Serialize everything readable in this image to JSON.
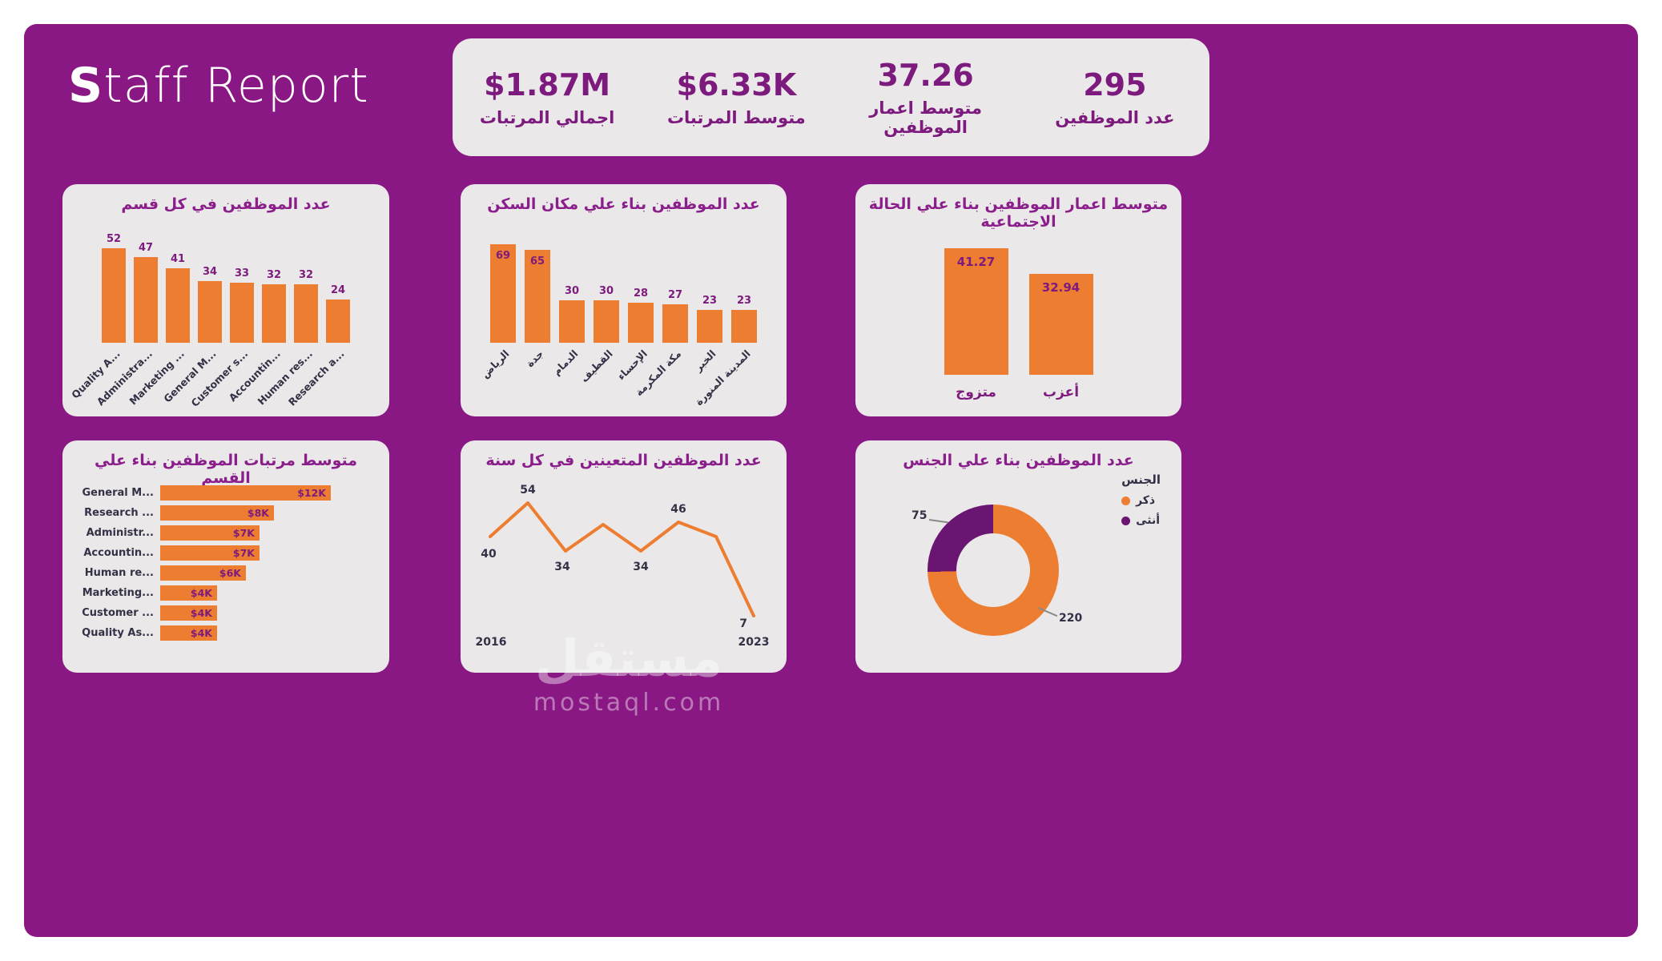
{
  "colors": {
    "background": "#8A1884",
    "card": "#EAE8E8",
    "orange": "#ED7D31",
    "purple_text": "#7D1A7E",
    "title_purple": "#8A1F8C",
    "dark_label": "#343046",
    "donut_purple": "#6B1573"
  },
  "header": {
    "title_bold": "S",
    "title_rest": "taff Report"
  },
  "kpis": [
    {
      "value": "$1.87M",
      "label": "اجمالي المرتبات"
    },
    {
      "value": "$6.33K",
      "label": "متوسط المرتبات"
    },
    {
      "value": "37.26",
      "label": "متوسط اعمار الموظفين"
    },
    {
      "value": "295",
      "label": "عدد الموظفين"
    }
  ],
  "watermark": {
    "arabic": "مستقل",
    "latin": "mostaql.com"
  },
  "chart_data": [
    {
      "id": "employees_by_department",
      "type": "bar",
      "title": "عدد الموظفين في كل قسم",
      "categories": [
        "Quality A...",
        "Administra...",
        "Marketing ...",
        "General M...",
        "Customer s...",
        "Accountin...",
        "Human res...",
        "Research a..."
      ],
      "values": [
        52,
        47,
        41,
        34,
        33,
        32,
        32,
        24
      ],
      "ylim": [
        0,
        55
      ],
      "bar_color": "#ED7D31"
    },
    {
      "id": "employees_by_residence",
      "type": "bar",
      "title": "عدد الموظفين بناء علي مكان السكن",
      "categories": [
        "الرياض",
        "جدة",
        "الدمام",
        "القطيف",
        "الإحساء",
        "مكة المكرمة",
        "الخبر",
        "المدينة المنورة"
      ],
      "values": [
        69,
        65,
        30,
        30,
        28,
        27,
        23,
        23
      ],
      "ylim": [
        0,
        70
      ],
      "bar_color": "#ED7D31"
    },
    {
      "id": "avg_age_by_marital_status",
      "type": "bar",
      "title": "متوسط اعمار الموظفين بناء علي الحالة الاجتماعية",
      "categories": [
        "متزوج",
        "أعزب"
      ],
      "values": [
        41.27,
        32.94
      ],
      "labels": [
        "41.27",
        "32.94"
      ],
      "ylim": [
        0,
        45
      ],
      "bar_color": "#ED7D31"
    },
    {
      "id": "avg_salary_by_department",
      "type": "bar",
      "orientation": "horizontal",
      "title": "متوسط مرتبات الموظفين بناء علي القسم",
      "categories": [
        "General M...",
        "Research ...",
        "Administr...",
        "Accountin...",
        "Human re...",
        "Marketing...",
        "Customer ...",
        "Quality As..."
      ],
      "values": [
        12,
        8,
        7,
        7,
        6,
        4,
        4,
        4
      ],
      "labels": [
        "$12K",
        "$8K",
        "$7K",
        "$7K",
        "$6K",
        "$4K",
        "$4K",
        "$4K"
      ],
      "xlim": [
        0,
        13
      ],
      "bar_color": "#ED7D31"
    },
    {
      "id": "hires_per_year",
      "type": "line",
      "title": "عدد الموظفين المتعينين في كل سنة",
      "x": [
        2016,
        2017,
        2018,
        2019,
        2020,
        2021,
        2022,
        2023
      ],
      "values": [
        40,
        54,
        34,
        45,
        34,
        46,
        40,
        7
      ],
      "shown_labels": [
        "40",
        "54",
        "34",
        null,
        "34",
        "46",
        null,
        "7"
      ],
      "x_axis_labels": [
        "2016",
        "2023"
      ],
      "line_color": "#ED7D31"
    },
    {
      "id": "employees_by_gender",
      "type": "pie",
      "donut": true,
      "title": "عدد الموظفين بناء علي الجنس",
      "legend_title": "الجنس",
      "slices": [
        {
          "label": "ذكر",
          "value": 220,
          "color": "#ED7D31"
        },
        {
          "label": "أنثى",
          "value": 75,
          "color": "#6B1573"
        }
      ],
      "legend_position": "top-right"
    }
  ]
}
